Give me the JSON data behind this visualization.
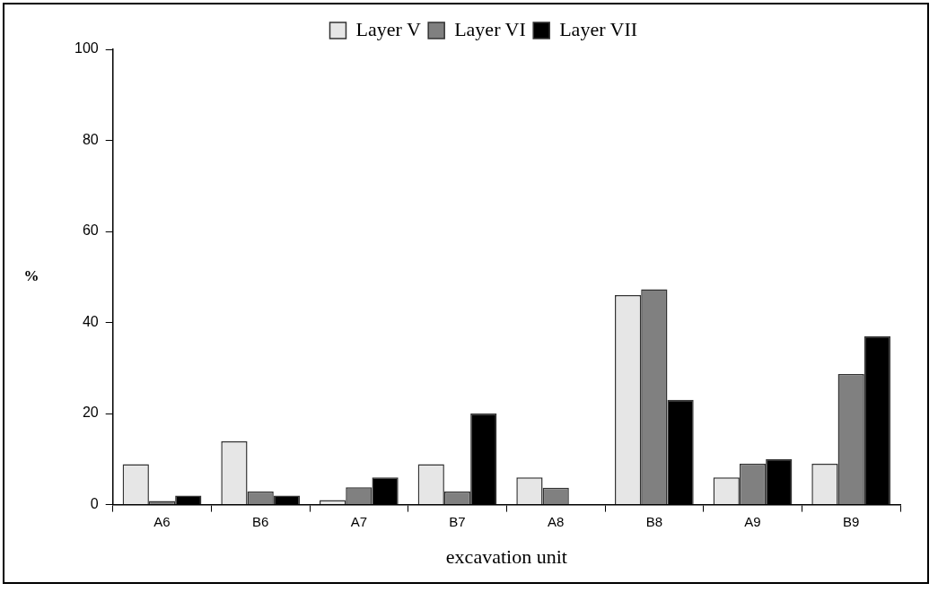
{
  "chart_data": {
    "type": "bar",
    "xlabel": "excavation unit",
    "ylabel": "%",
    "categories": [
      "A6",
      "B6",
      "A7",
      "B7",
      "A8",
      "B8",
      "A9",
      "B9"
    ],
    "series": [
      {
        "name": "Layer V",
        "color": "#e6e6e6",
        "values": [
          8.9,
          13.9,
          1,
          8.9,
          6,
          46,
          6,
          9
        ]
      },
      {
        "name": "Layer VI",
        "color": "#808080",
        "values": [
          0.8,
          2.9,
          3.8,
          2.9,
          3.7,
          47.3,
          9,
          28.7
        ]
      },
      {
        "name": "Layer VII",
        "color": "#000000",
        "values": [
          2,
          2,
          6,
          20,
          null,
          23,
          10,
          37
        ]
      }
    ],
    "ylim": [
      0,
      100
    ],
    "yticks": [
      0,
      20,
      40,
      60,
      80,
      100
    ],
    "grid": false,
    "legend": "top"
  }
}
